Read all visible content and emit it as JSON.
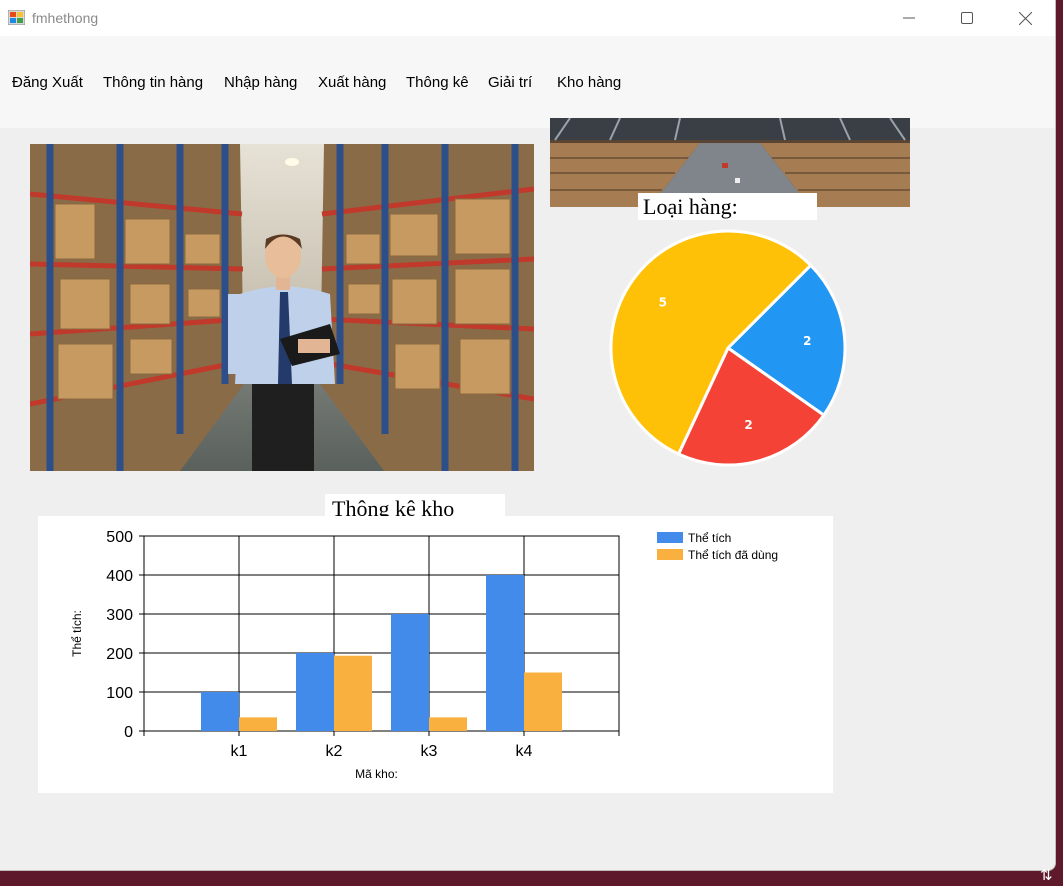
{
  "window": {
    "title": "fmhethong"
  },
  "controls": {
    "minimize": "minimize",
    "maximize": "maximize",
    "close": "close"
  },
  "menu": [
    {
      "label": "Đăng Xuất"
    },
    {
      "label": "Thông tin hàng"
    },
    {
      "label": "Nhập hàng"
    },
    {
      "label": "Xuất hàng"
    },
    {
      "label": "Thông kê"
    },
    {
      "label": "Giải trí"
    },
    {
      "label": "Kho hàng"
    }
  ],
  "pie": {
    "title": "Loại hàng:",
    "chart_data": {
      "type": "pie",
      "values": [
        2,
        2,
        5
      ],
      "colors": [
        "#2196f3",
        "#f44336",
        "#ffc107"
      ]
    }
  },
  "bar": {
    "title": "Thông kê kho",
    "chart_data": {
      "type": "bar",
      "categories": [
        "k1",
        "k2",
        "k3",
        "k4"
      ],
      "series": [
        {
          "name": "Thể tích",
          "values": [
            100,
            200,
            300,
            400
          ],
          "color": "#428bea"
        },
        {
          "name": "Thể tích đã dùng",
          "values": [
            35,
            193,
            35,
            150
          ],
          "color": "#fab03f"
        }
      ],
      "ylabel": "Thể tích:",
      "xlabel": "Mã kho:",
      "ylim": [
        0,
        500
      ],
      "yticks": [
        0,
        100,
        200,
        300,
        400,
        500
      ],
      "grid": true,
      "legend": "top-right"
    }
  }
}
